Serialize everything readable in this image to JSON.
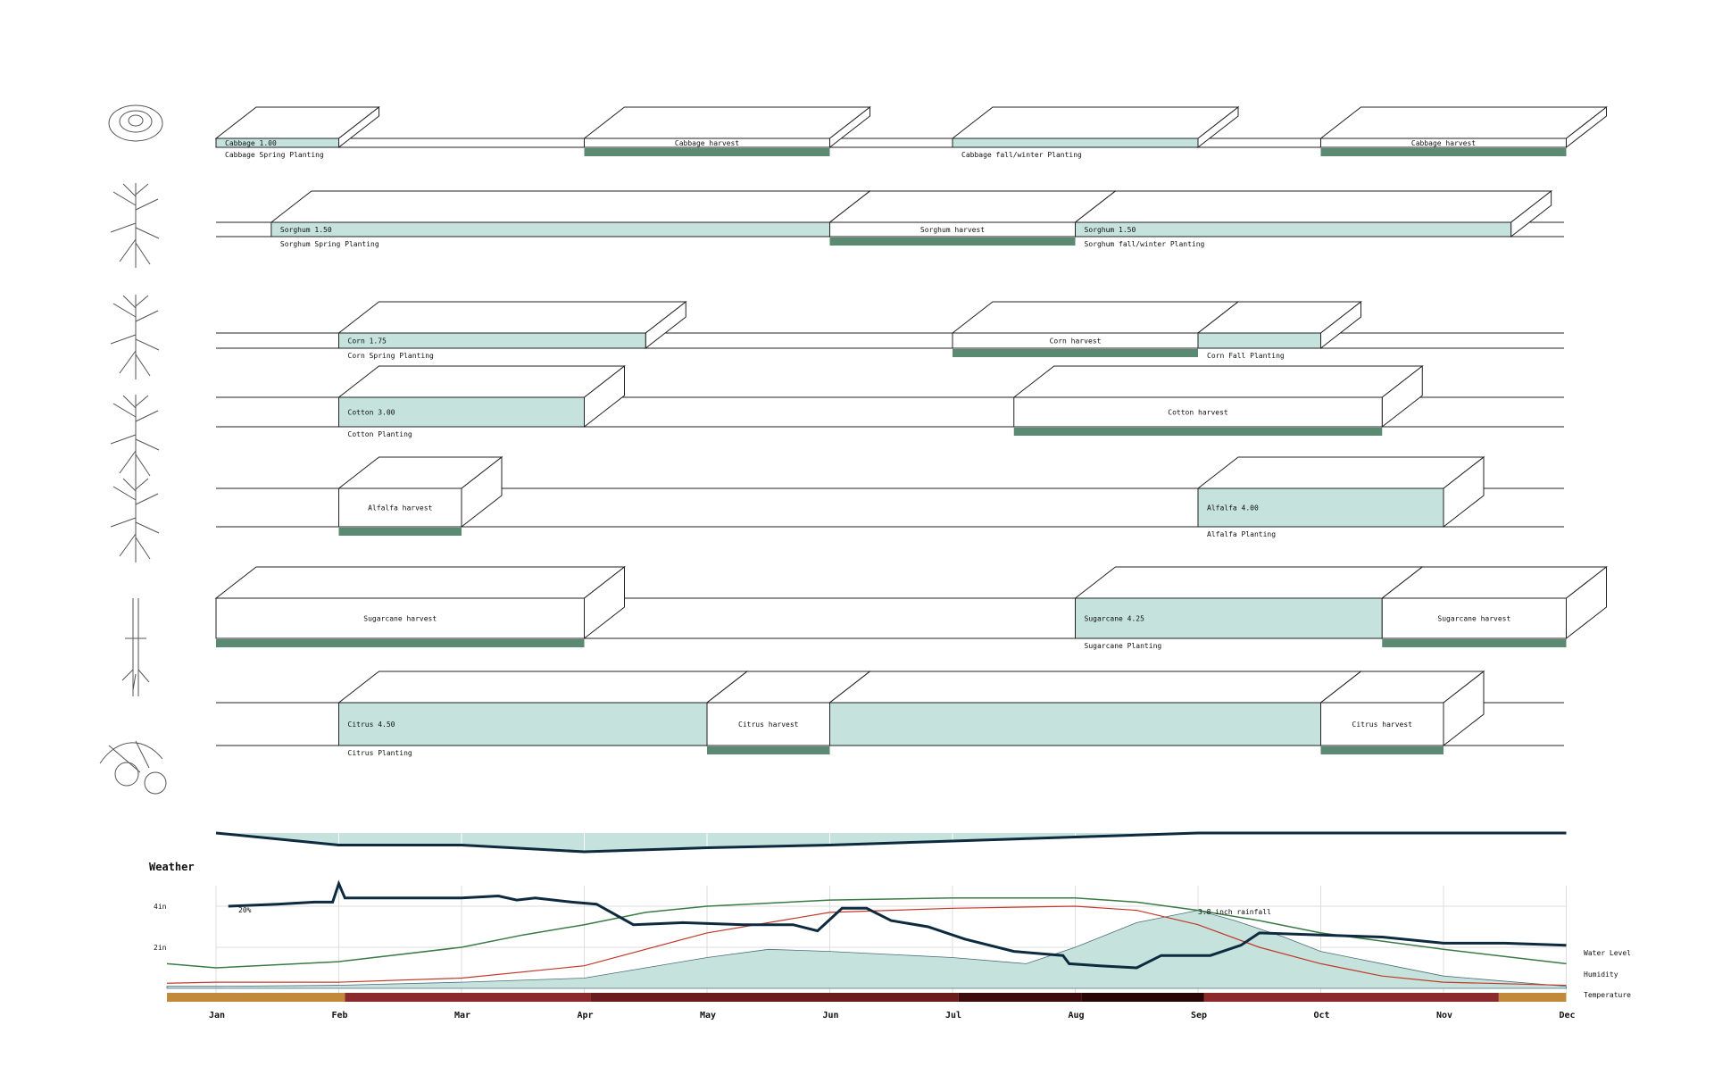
{
  "colors": {
    "planting_fill": "#c5e3dc",
    "harvest_bar": "#5a8a72",
    "outline": "#222222",
    "water_level": "#0d2a3f",
    "humidity": "#3a7a45",
    "temperature_curve": "#c0392b",
    "rainfall_fill": "#c5e3dc",
    "grid": "#dddddd"
  },
  "icons": [
    "cabbage-icon",
    "sorghum-icon",
    "corn-icon",
    "cotton-icon",
    "alfalfa-icon",
    "sugarcane-icon",
    "citrus-icon"
  ],
  "crops": [
    {
      "name": "Cabbage",
      "events": [
        {
          "type": "planting",
          "start": 0,
          "end": 1,
          "label": "Cabbage 1.00",
          "sublabel": "Cabbage Spring Planting"
        },
        {
          "type": "harvest",
          "start": 3,
          "end": 5,
          "label": "Cabbage harvest"
        },
        {
          "type": "planting",
          "start": 6,
          "end": 8,
          "label": "",
          "sublabel": "Cabbage fall/winter Planting"
        },
        {
          "type": "harvest",
          "start": 9,
          "end": 11,
          "label": "Cabbage harvest"
        }
      ]
    },
    {
      "name": "Sorghum",
      "events": [
        {
          "type": "planting",
          "start": 0.45,
          "end": 5,
          "label": "Sorghum 1.50",
          "sublabel": "Sorghum Spring Planting"
        },
        {
          "type": "harvest",
          "start": 5,
          "end": 7,
          "label": "Sorghum harvest"
        },
        {
          "type": "planting",
          "start": 7,
          "end": 10.55,
          "label": "Sorghum 1.50",
          "sublabel": "Sorghum fall/winter Planting"
        }
      ]
    },
    {
      "name": "Corn",
      "events": [
        {
          "type": "planting",
          "start": 1,
          "end": 3.5,
          "label": "Corn 1.75",
          "sublabel": "Corn Spring Planting"
        },
        {
          "type": "harvest",
          "start": 6,
          "end": 8,
          "label": "Corn harvest"
        },
        {
          "type": "planting",
          "start": 8,
          "end": 9,
          "label": "",
          "sublabel": "Corn Fall Planting"
        }
      ]
    },
    {
      "name": "Cotton",
      "events": [
        {
          "type": "planting",
          "start": 1,
          "end": 3,
          "label": "Cotton 3.00",
          "sublabel": "Cotton Planting"
        },
        {
          "type": "harvest",
          "start": 6.5,
          "end": 9.5,
          "label": "Cotton harvest"
        }
      ]
    },
    {
      "name": "Alfalfa",
      "events": [
        {
          "type": "harvest",
          "start": 1,
          "end": 2,
          "label": "Alfalfa harvest"
        },
        {
          "type": "planting",
          "start": 8,
          "end": 10,
          "label": "Alfalfa 4.00",
          "sublabel": "Alfalfa Planting"
        }
      ]
    },
    {
      "name": "Sugarcane",
      "events": [
        {
          "type": "harvest",
          "start": 0,
          "end": 3,
          "label": "Sugarcane harvest"
        },
        {
          "type": "planting",
          "start": 7,
          "end": 9.5,
          "label": "Sugarcane 4.25",
          "sublabel": "Sugarcane Planting"
        },
        {
          "type": "harvest",
          "start": 9.5,
          "end": 11,
          "label": "Sugarcane harvest"
        }
      ]
    },
    {
      "name": "Citrus",
      "events": [
        {
          "type": "planting",
          "start": 1,
          "end": 4,
          "label": "Citrus 4.50",
          "sublabel": "Citrus Planting"
        },
        {
          "type": "harvest",
          "start": 4,
          "end": 5,
          "label": "Citrus harvest"
        },
        {
          "type": "planting",
          "start": 5,
          "end": 9,
          "label": ""
        },
        {
          "type": "harvest",
          "start": 9,
          "end": 10,
          "label": "Citrus harvest"
        }
      ]
    }
  ],
  "water_demand": {
    "x": [
      0,
      1,
      2,
      3,
      4,
      5,
      6,
      7,
      8,
      9,
      10,
      11
    ],
    "y": [
      0,
      0.45,
      0.45,
      0.7,
      0.55,
      0.45,
      0.3,
      0.15,
      0,
      0,
      0,
      0
    ]
  },
  "chart_data": {
    "type": "line",
    "title": "Weather",
    "months": [
      "Jan",
      "Feb",
      "Mar",
      "Apr",
      "May",
      "Jun",
      "Jul",
      "Aug",
      "Sep",
      "Oct",
      "Nov",
      "Dec"
    ],
    "y_ticks": [
      "4in",
      "2in"
    ],
    "ylim": [
      0,
      5
    ],
    "annotations": [
      "20%",
      "3.8 inch rainfall"
    ],
    "series": [
      {
        "name": "Water Level",
        "x": [
          0.1,
          0.5,
          0.8,
          0.95,
          1.0,
          1.05,
          1.5,
          2.0,
          2.3,
          2.45,
          2.6,
          2.9,
          3.1,
          3.4,
          3.8,
          4.3,
          4.7,
          4.9,
          5.1,
          5.3,
          5.5,
          5.8,
          6.1,
          6.5,
          6.9,
          6.95,
          7.2,
          7.5,
          7.7,
          7.9,
          8.1,
          8.35,
          8.5,
          9.0,
          9.5,
          10.0,
          10.5,
          11.0
        ],
        "y": [
          4.0,
          4.1,
          4.2,
          4.2,
          5.1,
          4.4,
          4.4,
          4.4,
          4.5,
          4.3,
          4.4,
          4.2,
          4.1,
          3.1,
          3.2,
          3.1,
          3.1,
          2.8,
          3.9,
          3.9,
          3.3,
          3.0,
          2.4,
          1.8,
          1.6,
          1.2,
          1.1,
          1.0,
          1.6,
          1.6,
          1.6,
          2.1,
          2.7,
          2.6,
          2.5,
          2.2,
          2.2,
          2.1
        ]
      },
      {
        "name": "Humidity",
        "x": [
          -0.4,
          0,
          1.0,
          2.0,
          2.5,
          3.0,
          3.5,
          4.0,
          5.0,
          6.0,
          7.0,
          7.5,
          8.0,
          8.5,
          9.0,
          10.0,
          11.0
        ],
        "y": [
          1.2,
          1.0,
          1.3,
          2.0,
          2.6,
          3.1,
          3.7,
          4.0,
          4.3,
          4.4,
          4.4,
          4.2,
          3.8,
          3.3,
          2.7,
          1.9,
          1.2
        ]
      },
      {
        "name": "Temperature",
        "x": [
          -0.4,
          0,
          1.0,
          2.0,
          3.0,
          4.0,
          5.0,
          6.0,
          7.0,
          7.5,
          8.0,
          8.5,
          9.0,
          9.5,
          10.0,
          11.0
        ],
        "y": [
          0.25,
          0.3,
          0.3,
          0.5,
          1.1,
          2.7,
          3.7,
          3.9,
          4.0,
          3.8,
          3.1,
          2.0,
          1.2,
          0.6,
          0.3,
          0.15
        ]
      },
      {
        "name": "Rainfall",
        "x": [
          -0.4,
          0,
          1.0,
          2.0,
          3.0,
          3.5,
          4.0,
          4.5,
          5.0,
          6.0,
          6.6,
          7.0,
          7.5,
          8.0,
          8.3,
          8.7,
          9.0,
          10.0,
          11.0
        ],
        "y": [
          0.1,
          0.1,
          0.15,
          0.3,
          0.5,
          1.0,
          1.5,
          1.9,
          1.8,
          1.5,
          1.2,
          2.0,
          3.2,
          3.8,
          3.3,
          2.5,
          1.8,
          0.6,
          0.1
        ]
      }
    ],
    "temperature_band": {
      "label": "Temperature",
      "segments": [
        {
          "start": -0.4,
          "end": 1.05,
          "color": "#c1893a"
        },
        {
          "start": 1.05,
          "end": 3.05,
          "color": "#8b2a2a"
        },
        {
          "start": 3.05,
          "end": 6.05,
          "color": "#6b1c1c"
        },
        {
          "start": 6.05,
          "end": 7.05,
          "color": "#3d0b0b"
        },
        {
          "start": 7.05,
          "end": 8.05,
          "color": "#2a0505"
        },
        {
          "start": 8.05,
          "end": 10.45,
          "color": "#8b2a2a"
        },
        {
          "start": 10.45,
          "end": 11.0,
          "color": "#c1893a"
        }
      ]
    }
  }
}
